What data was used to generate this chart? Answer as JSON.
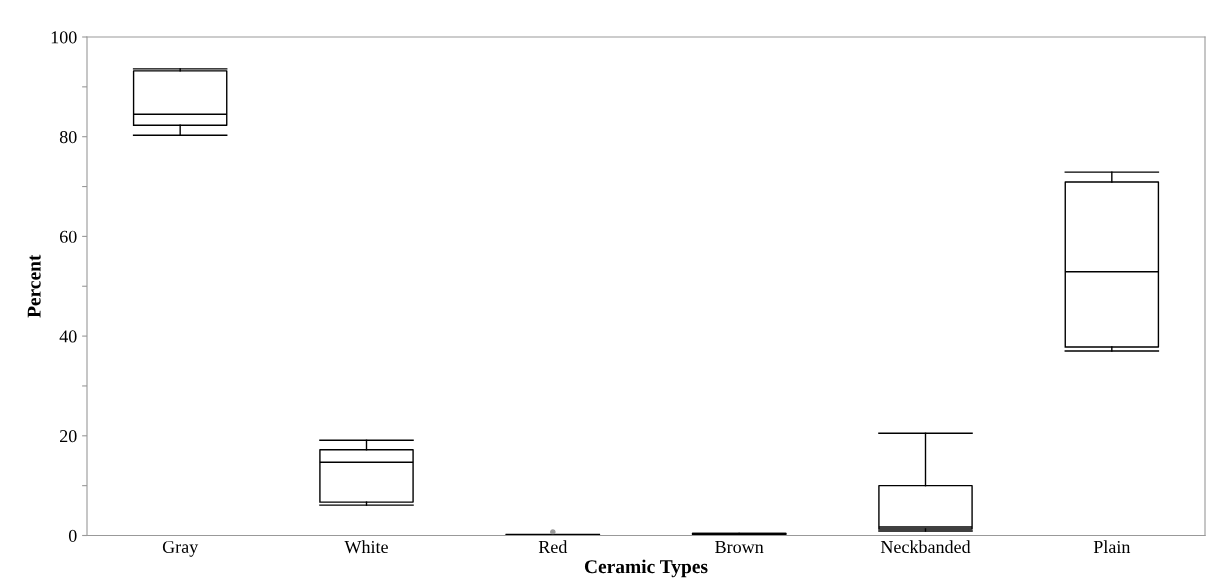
{
  "chart_data": {
    "type": "box",
    "xlabel": "Ceramic Types",
    "ylabel": "Percent",
    "categories": [
      "Gray",
      "White",
      "Red",
      "Brown",
      "Neckbanded",
      "Plain"
    ],
    "boxes": [
      {
        "low": 80.3,
        "q1": 82.3,
        "median": 84.5,
        "q3": 93.2,
        "high": 93.6
      },
      {
        "low": 6.1,
        "q1": 6.7,
        "median": 14.7,
        "q3": 17.2,
        "high": 19.1
      },
      {
        "low": 0,
        "q1": 0,
        "median": 0.1,
        "q3": 0.1,
        "high": 0.2,
        "outliers": [
          0.7
        ]
      },
      {
        "low": 0,
        "q1": 0,
        "median": 0.2,
        "q3": 0.4,
        "high": 0.4
      },
      {
        "low": 0.9,
        "q1": 1.3,
        "median": 1.7,
        "q3": 10.0,
        "high": 20.5
      },
      {
        "low": 37.0,
        "q1": 37.8,
        "median": 52.9,
        "q3": 70.9,
        "high": 72.9
      }
    ],
    "ylim": [
      0,
      100
    ],
    "yticks": [
      0,
      {
        "value": 10,
        "label": null
      },
      20,
      {
        "value": 30,
        "label": null
      },
      40,
      {
        "value": 50,
        "label": null
      },
      60,
      {
        "value": 70,
        "label": null
      },
      80,
      {
        "value": 90,
        "label": null
      },
      100
    ],
    "grid": false,
    "legend": false
  }
}
